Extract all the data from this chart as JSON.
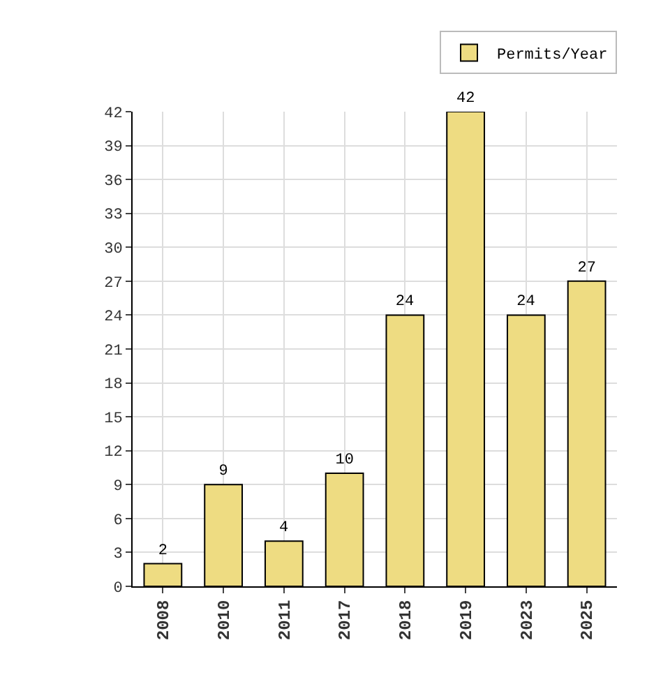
{
  "chart_data": {
    "type": "bar",
    "categories": [
      "2008",
      "2010",
      "2011",
      "2017",
      "2018",
      "2019",
      "2023",
      "2025"
    ],
    "series": [
      {
        "name": "Permits/Year",
        "color": "#eedc82",
        "values": [
          2,
          9,
          4,
          10,
          24,
          42,
          24,
          27
        ]
      }
    ],
    "ylim": [
      0,
      42
    ],
    "yticks": [
      0,
      3,
      6,
      9,
      12,
      15,
      18,
      21,
      24,
      27,
      30,
      33,
      36,
      39,
      42
    ],
    "data_labels": true,
    "grid": true,
    "legend": "top right"
  }
}
